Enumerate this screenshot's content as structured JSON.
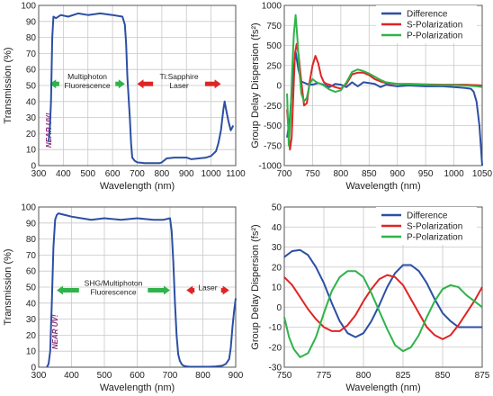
{
  "colors": {
    "blue": "#2c4fa3",
    "red": "#e02424",
    "green": "#2fb34a",
    "grid": "#c8c8c8",
    "axis": "#555555",
    "nearuv": "#8a2a7a"
  },
  "chart_data": [
    {
      "id": "tl",
      "type": "line",
      "title": "",
      "xlabel": "Wavelength (nm)",
      "ylabel": "Transmission (%)",
      "xlim": [
        300,
        1100
      ],
      "ylim": [
        0,
        100
      ],
      "xticks": [
        300,
        400,
        500,
        600,
        700,
        800,
        900,
        1000,
        1100
      ],
      "yticks": [
        0,
        10,
        20,
        30,
        40,
        50,
        60,
        70,
        80,
        90,
        100
      ],
      "grid": true,
      "series": [
        {
          "color": "blue",
          "x": [
            340,
            345,
            350,
            355,
            360,
            370,
            390,
            420,
            460,
            500,
            550,
            600,
            640,
            650,
            655,
            660,
            670,
            675,
            680,
            690,
            700,
            730,
            760,
            790,
            800,
            820,
            850,
            880,
            900,
            920,
            950,
            980,
            1000,
            1020,
            1030,
            1040,
            1050,
            1055,
            1060,
            1070,
            1080,
            1090
          ],
          "y": [
            15,
            22,
            40,
            80,
            93,
            92,
            94,
            93,
            95,
            94,
            95,
            94,
            93,
            88,
            76,
            55,
            30,
            14,
            5,
            3,
            2,
            1.5,
            1.5,
            1.5,
            2,
            4.5,
            5,
            5,
            5,
            4,
            4.5,
            5,
            6,
            9,
            14,
            22,
            35,
            40,
            36,
            28,
            22,
            25
          ]
        }
      ],
      "annotations": [
        {
          "type": "arrow",
          "text": "Multiphoton\nFluorescence",
          "from": 345,
          "to": 650,
          "y": 51,
          "color": "green"
        },
        {
          "type": "arrow",
          "text": "Ti:Sapphire\nLaser",
          "from": 700,
          "to": 1040,
          "y": 51,
          "color": "red"
        }
      ],
      "region_label": "NEAR UV!"
    },
    {
      "id": "tr",
      "type": "line",
      "title": "",
      "xlabel": "Wavelength (nm)",
      "ylabel": "Group Delay Dispersion (fs²)",
      "xlim": [
        700,
        1050
      ],
      "ylim": [
        -1000,
        1000
      ],
      "xticks": [
        700,
        750,
        800,
        850,
        900,
        950,
        1000,
        1050
      ],
      "yticks": [
        -1000,
        -750,
        -500,
        -250,
        0,
        250,
        500,
        750,
        1000
      ],
      "grid": true,
      "legend": "top-right",
      "series": [
        {
          "name": "Difference",
          "color": "blue",
          "x": [
            705,
            710,
            715,
            720,
            725,
            730,
            740,
            750,
            760,
            770,
            780,
            790,
            800,
            810,
            820,
            830,
            840,
            850,
            860,
            870,
            880,
            900,
            920,
            950,
            980,
            1000,
            1020,
            1030,
            1035,
            1040,
            1045,
            1050
          ],
          "y": [
            -650,
            -400,
            100,
            420,
            200,
            50,
            20,
            10,
            30,
            10,
            -20,
            20,
            10,
            -20,
            40,
            -10,
            40,
            30,
            20,
            -20,
            10,
            -10,
            0,
            -10,
            -10,
            -20,
            -30,
            -40,
            -80,
            -200,
            -500,
            -1000
          ]
        },
        {
          "name": "S-Polarization",
          "color": "red",
          "x": [
            705,
            710,
            713,
            716,
            719,
            722,
            725,
            730,
            735,
            740,
            745,
            750,
            755,
            760,
            765,
            770,
            775,
            780,
            790,
            800,
            810,
            820,
            830,
            840,
            850,
            860,
            870,
            880,
            900,
            920,
            950,
            980,
            1000,
            1020,
            1040,
            1050
          ],
          "y": [
            -300,
            -800,
            -650,
            -100,
            400,
            520,
            400,
            50,
            -250,
            -220,
            50,
            250,
            370,
            280,
            120,
            40,
            20,
            10,
            -20,
            -40,
            20,
            140,
            160,
            160,
            130,
            80,
            50,
            30,
            20,
            20,
            15,
            10,
            10,
            10,
            5,
            0
          ]
        },
        {
          "name": "P-Polarization",
          "color": "green",
          "x": [
            705,
            708,
            711,
            714,
            717,
            720,
            723,
            727,
            730,
            735,
            740,
            745,
            750,
            755,
            760,
            765,
            770,
            780,
            790,
            800,
            810,
            820,
            830,
            840,
            850,
            860,
            870,
            880,
            900,
            920,
            950,
            980,
            1000,
            1020,
            1040,
            1050
          ],
          "y": [
            -100,
            -750,
            -400,
            200,
            650,
            880,
            600,
            150,
            -100,
            -200,
            -150,
            20,
            80,
            50,
            30,
            20,
            0,
            -50,
            -80,
            -60,
            40,
            170,
            200,
            180,
            150,
            110,
            70,
            40,
            20,
            15,
            10,
            5,
            5,
            0,
            -10,
            -20
          ]
        }
      ]
    },
    {
      "id": "bl",
      "type": "line",
      "title": "",
      "xlabel": "Wavelength (nm)",
      "ylabel": "Transmission (%)",
      "xlim": [
        300,
        900
      ],
      "ylim": [
        0,
        100
      ],
      "xticks": [
        300,
        400,
        500,
        600,
        700,
        800,
        900
      ],
      "yticks": [
        0,
        10,
        20,
        30,
        40,
        50,
        60,
        70,
        80,
        90,
        100
      ],
      "grid": true,
      "series": [
        {
          "color": "blue",
          "x": [
            325,
            330,
            335,
            340,
            345,
            350,
            355,
            360,
            380,
            400,
            430,
            460,
            500,
            550,
            600,
            650,
            680,
            700,
            705,
            710,
            715,
            720,
            725,
            730,
            735,
            740,
            750,
            760,
            780,
            800,
            820,
            840,
            860,
            870,
            880,
            885,
            890,
            895,
            900
          ],
          "y": [
            0,
            2,
            10,
            40,
            75,
            92,
            95,
            96,
            95,
            94,
            93,
            92,
            93,
            92,
            93,
            92,
            92,
            93,
            85,
            65,
            40,
            20,
            8,
            4,
            2,
            1,
            0.5,
            0.3,
            0.3,
            0.3,
            0.3,
            0.5,
            1,
            2,
            5,
            12,
            25,
            35,
            43
          ]
        }
      ],
      "annotations": [
        {
          "type": "arrow",
          "text": "SHG/Multiphoton\nFluorescence",
          "from": 355,
          "to": 700,
          "y": 48,
          "color": "green"
        },
        {
          "type": "arrow",
          "text": "Laser",
          "from": 750,
          "to": 880,
          "y": 48,
          "color": "red"
        }
      ],
      "region_label": "NEAR UV!"
    },
    {
      "id": "br",
      "type": "line",
      "title": "",
      "xlabel": "Wavelength (nm)",
      "ylabel": "Group Delay Dispersion (fs²)",
      "xlim": [
        750,
        875
      ],
      "ylim": [
        -30,
        50
      ],
      "xticks": [
        750,
        775,
        800,
        825,
        850,
        875
      ],
      "yticks": [
        -30,
        -20,
        -10,
        0,
        10,
        20,
        30,
        40,
        50
      ],
      "grid": true,
      "legend": "top-right",
      "series": [
        {
          "name": "Difference",
          "color": "blue",
          "x": [
            750,
            755,
            760,
            765,
            770,
            775,
            780,
            785,
            790,
            795,
            800,
            805,
            810,
            815,
            820,
            825,
            830,
            835,
            840,
            845,
            850,
            855,
            860,
            865,
            870,
            875
          ],
          "y": [
            25,
            28,
            28.5,
            26,
            20,
            12,
            2,
            -7,
            -13,
            -15,
            -13,
            -7,
            1,
            10,
            17,
            21,
            21,
            18,
            12,
            4,
            -3,
            -7,
            -10,
            -10,
            -10,
            -10
          ]
        },
        {
          "name": "S-Polarization",
          "color": "red",
          "x": [
            750,
            755,
            760,
            765,
            770,
            775,
            780,
            785,
            790,
            795,
            800,
            805,
            810,
            815,
            820,
            825,
            830,
            835,
            840,
            845,
            850,
            855,
            860,
            865,
            870,
            875
          ],
          "y": [
            15,
            11,
            5,
            -1,
            -6,
            -10,
            -12,
            -12,
            -9,
            -4,
            3,
            9,
            14,
            16,
            15,
            11,
            4,
            -3,
            -10,
            -14,
            -16,
            -14,
            -9,
            -3,
            3,
            10
          ]
        },
        {
          "name": "P-Polarization",
          "color": "green",
          "x": [
            750,
            753,
            756,
            760,
            765,
            770,
            775,
            780,
            785,
            790,
            795,
            800,
            805,
            810,
            815,
            820,
            825,
            830,
            835,
            840,
            845,
            850,
            855,
            860,
            865,
            870,
            875
          ],
          "y": [
            -5,
            -15,
            -21,
            -25,
            -23,
            -15,
            -3,
            8,
            15,
            18,
            18,
            15,
            7,
            -2,
            -11,
            -19,
            -22,
            -20,
            -14,
            -5,
            3,
            9,
            11,
            10,
            6,
            3,
            0
          ]
        }
      ]
    }
  ]
}
